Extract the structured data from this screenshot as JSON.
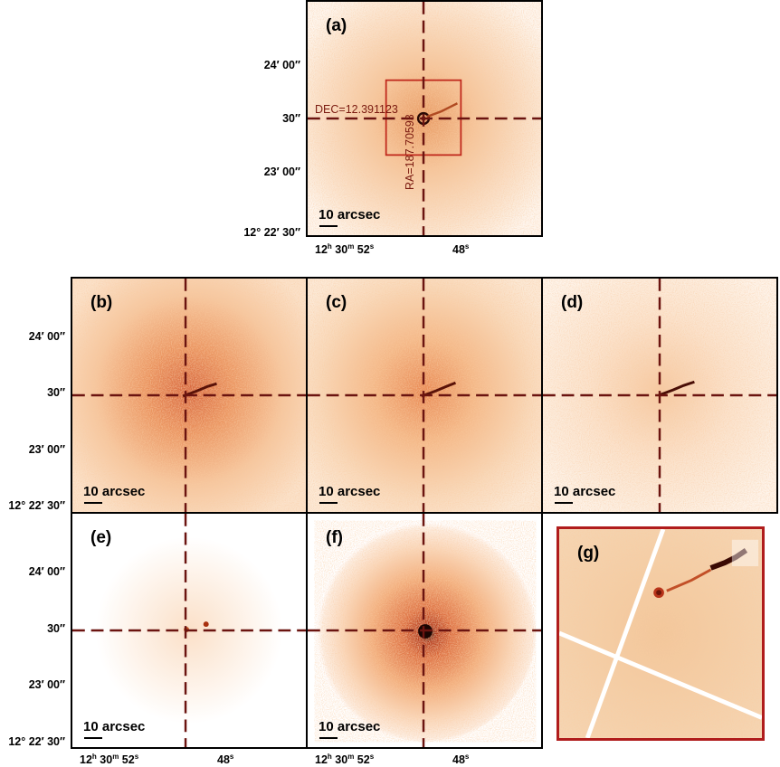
{
  "panels": {
    "a": {
      "label": "(a)",
      "scale": "10 arcsec"
    },
    "b": {
      "label": "(b)",
      "scale": "10 arcsec"
    },
    "c": {
      "label": "(c)",
      "scale": "10 arcsec"
    },
    "d": {
      "label": "(d)",
      "scale": "10 arcsec"
    },
    "e": {
      "label": "(e)",
      "scale": "10 arcsec"
    },
    "f": {
      "label": "(f)",
      "scale": "10 arcsec"
    },
    "g": {
      "label": "(g)"
    }
  },
  "crosshair": {
    "dec_label": "DEC=12.391123",
    "ra_label": "RA=187.70593"
  },
  "axes": {
    "dec_ticks": [
      "24′ 00″",
      "30″",
      "23′ 00″",
      "12° 22′ 30″"
    ],
    "ra_ticks": {
      "first": {
        "h": "12",
        "m": "30",
        "s": "52",
        "hs": "h",
        "ms": "m",
        "ss": "s"
      },
      "second": {
        "s": "48",
        "ss": "s"
      }
    }
  },
  "colors": {
    "frame": "#000000",
    "crosshair": "#6b1410",
    "inset_box": "#c0281c",
    "inset_frame": "#b01c1c"
  }
}
